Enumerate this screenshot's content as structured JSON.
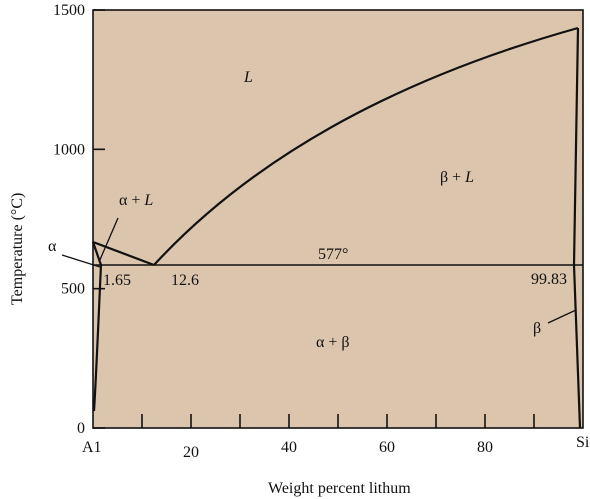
{
  "colors": {
    "region_fill": "#dcc5ad",
    "line": "#111111",
    "background": "#ffffff"
  },
  "axes": {
    "y_title": "Temperature (°C)",
    "x_title": "Weight percent lithum",
    "y_ticks": [
      {
        "value": 0,
        "label": "0"
      },
      {
        "value": 500,
        "label": "500"
      },
      {
        "value": 1000,
        "label": "1000"
      },
      {
        "value": 1500,
        "label": "1500"
      }
    ],
    "x_tick_labels": [
      {
        "value": 20,
        "label": "20"
      },
      {
        "value": 40,
        "label": "40"
      },
      {
        "value": 60,
        "label": "60"
      },
      {
        "value": 80,
        "label": "80"
      }
    ],
    "x_minor_ticks": [
      10,
      20,
      30,
      40,
      50,
      60,
      70,
      80,
      90
    ],
    "x_end_left": "A1",
    "x_end_right": "Si"
  },
  "phase_labels": {
    "liquid": "L",
    "alpha_plus_liquid_prefix": "α + ",
    "alpha_plus_liquid_suffix": "L",
    "beta_plus_liquid_prefix": "β + ",
    "beta_plus_liquid_suffix": "L",
    "alpha_plus_beta": "α + β",
    "alpha": "α",
    "beta": "β"
  },
  "annotations": {
    "eutectic_temperature": "577°",
    "alpha_max_solubility": "1.65",
    "eutectic_composition": "12.6",
    "beta_max_solubility": "99.83"
  },
  "diagram_data": {
    "x_range": [
      0,
      100
    ],
    "y_range": [
      0,
      1500
    ],
    "eutectic": {
      "composition": 12.6,
      "temperature": 577
    },
    "alpha_solvus_max": 1.65,
    "beta_solvus_max": 99.83,
    "al_melting_point": 660,
    "si_melting_point": 1414
  }
}
